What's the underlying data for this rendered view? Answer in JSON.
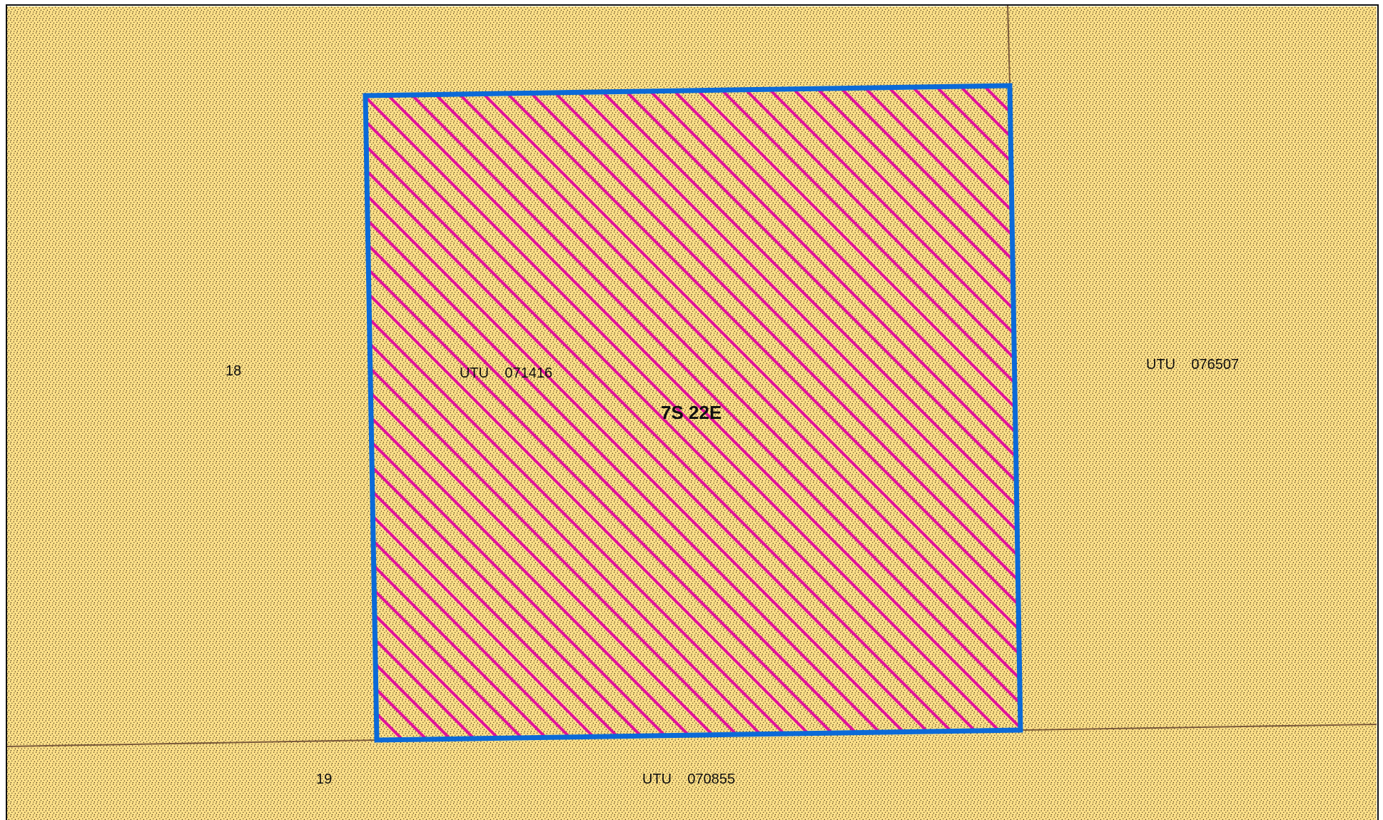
{
  "map": {
    "colors": {
      "background": "#FFE189",
      "stipple": "#4A3A1A",
      "parcel_line": "#7A5A3A",
      "frame": "#111111",
      "selected_outline": "#0B6AD8",
      "selected_hatch": "#E0129A"
    },
    "labels": {
      "section_18": "18",
      "section_19": "19",
      "lease_west": "UTU    071416",
      "township_range": "7S 22E",
      "lease_east": "UTU    076507",
      "lease_south": "UTU    070855"
    }
  }
}
